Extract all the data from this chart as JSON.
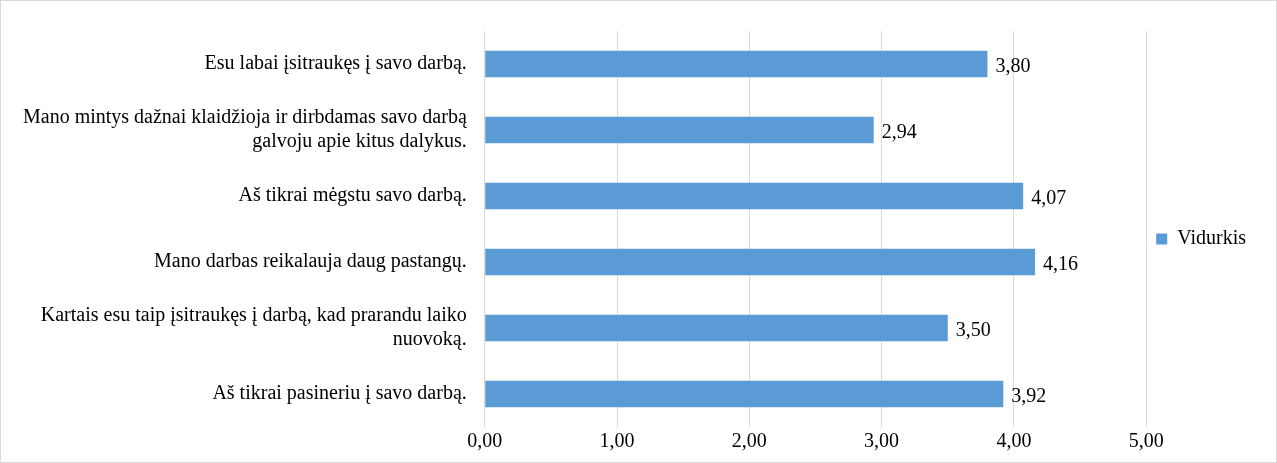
{
  "chart_data": {
    "type": "bar",
    "orientation": "horizontal",
    "categories": [
      "Esu labai įsitraukęs į savo darbą.",
      "Mano mintys dažnai klaidžioja ir dirbdamas savo darbą galvoju apie kitus dalykus.",
      "Aš tikrai mėgstu savo darbą.",
      "Mano darbas reikalauja daug pastangų.",
      "Kartais esu taip įsitraukęs į darbą, kad prarandu laiko nuovoką.",
      "Aš tikrai pasineriu į savo darbą."
    ],
    "series": [
      {
        "name": "Vidurkis",
        "color": "#5b9bd5",
        "values": [
          3.8,
          2.94,
          4.07,
          4.16,
          3.5,
          3.92
        ],
        "value_labels": [
          "3,80",
          "2,94",
          "4,07",
          "4,16",
          "3,50",
          "3,92"
        ]
      }
    ],
    "xlim": [
      0,
      5
    ],
    "xticks": [
      {
        "value": 0,
        "label": "0,00"
      },
      {
        "value": 1,
        "label": "1,00"
      },
      {
        "value": 2,
        "label": "2,00"
      },
      {
        "value": 3,
        "label": "3,00"
      },
      {
        "value": 4,
        "label": "4,00"
      },
      {
        "value": 5,
        "label": "5,00"
      }
    ],
    "grid": "x",
    "legend": "right"
  }
}
